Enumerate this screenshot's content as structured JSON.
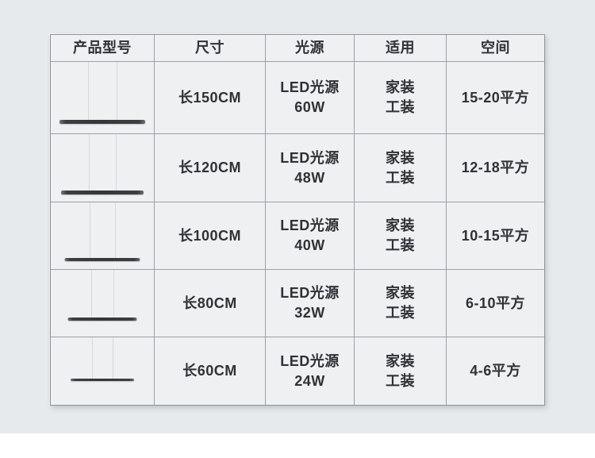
{
  "page": {
    "background_color": "#e7eaec",
    "bottom_strip_color": "#ffffff",
    "text_color": "#2e3236",
    "cell_background": "#eef0f2",
    "border_color": "#9ba1a6",
    "lamp_bar_color": "#33373b"
  },
  "table": {
    "headers": [
      "产品型号",
      "尺寸",
      "光源",
      "适用",
      "空间"
    ],
    "rows": [
      {
        "image_icon": "pendant-lamp-icon",
        "size": "长150CM",
        "source_line1": "LED光源",
        "source_line2": "60W",
        "use_line1": "家装",
        "use_line2": "工装",
        "space": "15-20平方"
      },
      {
        "image_icon": "pendant-lamp-icon",
        "size": "长120CM",
        "source_line1": "LED光源",
        "source_line2": "48W",
        "use_line1": "家装",
        "use_line2": "工装",
        "space": "12-18平方"
      },
      {
        "image_icon": "pendant-lamp-icon",
        "size": "长100CM",
        "source_line1": "LED光源",
        "source_line2": "40W",
        "use_line1": "家装",
        "use_line2": "工装",
        "space": "10-15平方"
      },
      {
        "image_icon": "pendant-lamp-icon",
        "size": "长80CM",
        "source_line1": "LED光源",
        "source_line2": "32W",
        "use_line1": "家装",
        "use_line2": "工装",
        "space": "6-10平方"
      },
      {
        "image_icon": "pendant-lamp-icon",
        "size": "长60CM",
        "source_line1": "LED光源",
        "source_line2": "24W",
        "use_line1": "家装",
        "use_line2": "工装",
        "space": "4-6平方"
      }
    ]
  }
}
